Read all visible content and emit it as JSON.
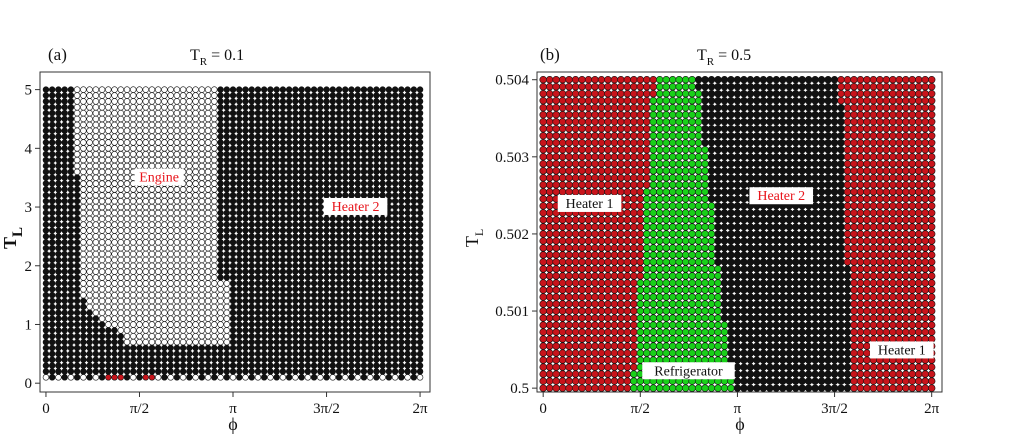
{
  "colors": {
    "heater2_dot": "#111111",
    "engine_dot": "#ffffff",
    "heater1_dot": "#c8141b",
    "refrigerator_dot": "#19d019",
    "label_red": "#e8141b",
    "label_dark": "#111111",
    "frame": "#333333"
  },
  "chart_data": [
    {
      "panel": "(a)",
      "type": "scatter",
      "title": "T_R = 0.1",
      "title_main": "T",
      "title_sub": "R",
      "title_rest": " = 0.1",
      "xlabel": "ϕ",
      "ylabel_main": "T",
      "ylabel_sub": "L",
      "xlim": [
        -0.1,
        6.45
      ],
      "ylim": [
        -0.15,
        5.3
      ],
      "xticks": [
        0,
        1.5708,
        3.1416,
        4.7124,
        6.2832
      ],
      "xtick_labels": [
        "0",
        "π/2",
        "π",
        "3π/2",
        "2π"
      ],
      "yticks": [
        0,
        1,
        2,
        3,
        4,
        5
      ],
      "ytick_labels": [
        "0",
        "1",
        "2",
        "3",
        "4",
        "5"
      ],
      "grid": false,
      "grid_points": {
        "x_min": 0,
        "x_max": 6.2832,
        "nx": 61,
        "y_min": 0.1,
        "y_max": 5.0,
        "ny": 50
      },
      "regions": [
        {
          "name": "Heater 2",
          "color": "#111111",
          "default": true
        },
        {
          "name": "Engine",
          "color": "#ffffff",
          "phi_range": [
            0.55,
            3.1
          ],
          "tl_ranges": [
            [
              0.3,
              1.5
            ],
            [
              1.5,
              5.0
            ]
          ]
        },
        {
          "name": "Heater 1",
          "color": "#c8141b",
          "points": [
            [
              1.05,
              0.1
            ],
            [
              1.2,
              0.1
            ],
            [
              1.65,
              0.1
            ],
            [
              1.75,
              0.1
            ]
          ]
        }
      ],
      "annotations": [
        {
          "text": "Engine",
          "x": 1.9,
          "y": 3.45,
          "color": "#e8141b"
        },
        {
          "text": "Heater 2",
          "x": 5.2,
          "y": 2.95,
          "color": "#e8141b"
        }
      ]
    },
    {
      "panel": "(b)",
      "type": "scatter",
      "title": "T_R = 0.5",
      "title_main": "T",
      "title_sub": "R",
      "title_rest": " = 0.5",
      "xlabel": "ϕ",
      "ylabel_main": "T",
      "ylabel_sub": "L",
      "xlim": [
        -0.1,
        6.45
      ],
      "ylim": [
        0.49995,
        0.5041
      ],
      "xticks": [
        0,
        1.5708,
        3.1416,
        4.7124,
        6.2832
      ],
      "xtick_labels": [
        "0",
        "π/2",
        "π",
        "3π/2",
        "2π"
      ],
      "yticks": [
        0.5,
        0.501,
        0.502,
        0.503,
        0.504
      ],
      "ytick_labels": [
        "0.5",
        "0.501",
        "0.502",
        "0.503",
        "0.504"
      ],
      "grid": false,
      "grid_points": {
        "x_min": 0,
        "x_max": 6.2832,
        "nx": 61,
        "y_min": 0.5,
        "y_max": 0.504,
        "ny": 45
      },
      "regions": [
        {
          "name": "Heater 1",
          "color": "#c8141b",
          "phi_ranges": [
            [
              0,
              1.45
            ],
            [
              5.0,
              6.2832
            ]
          ]
        },
        {
          "name": "Refrigerator",
          "color": "#19d019",
          "phi_range": [
            1.45,
            3.05
          ]
        },
        {
          "name": "Heater 2",
          "color": "#111111",
          "phi_range": [
            3.05,
            5.0
          ]
        }
      ],
      "annotations": [
        {
          "text": "Heater 1",
          "x": 0.75,
          "y": 0.50235,
          "color": "#111111"
        },
        {
          "text": "Heater 2",
          "x": 3.85,
          "y": 0.50245,
          "color": "#e8141b"
        },
        {
          "text": "Refrigerator",
          "x": 2.35,
          "y": 0.50018,
          "color": "#111111"
        },
        {
          "text": "Heater 1",
          "x": 5.8,
          "y": 0.50045,
          "color": "#111111"
        }
      ]
    }
  ]
}
